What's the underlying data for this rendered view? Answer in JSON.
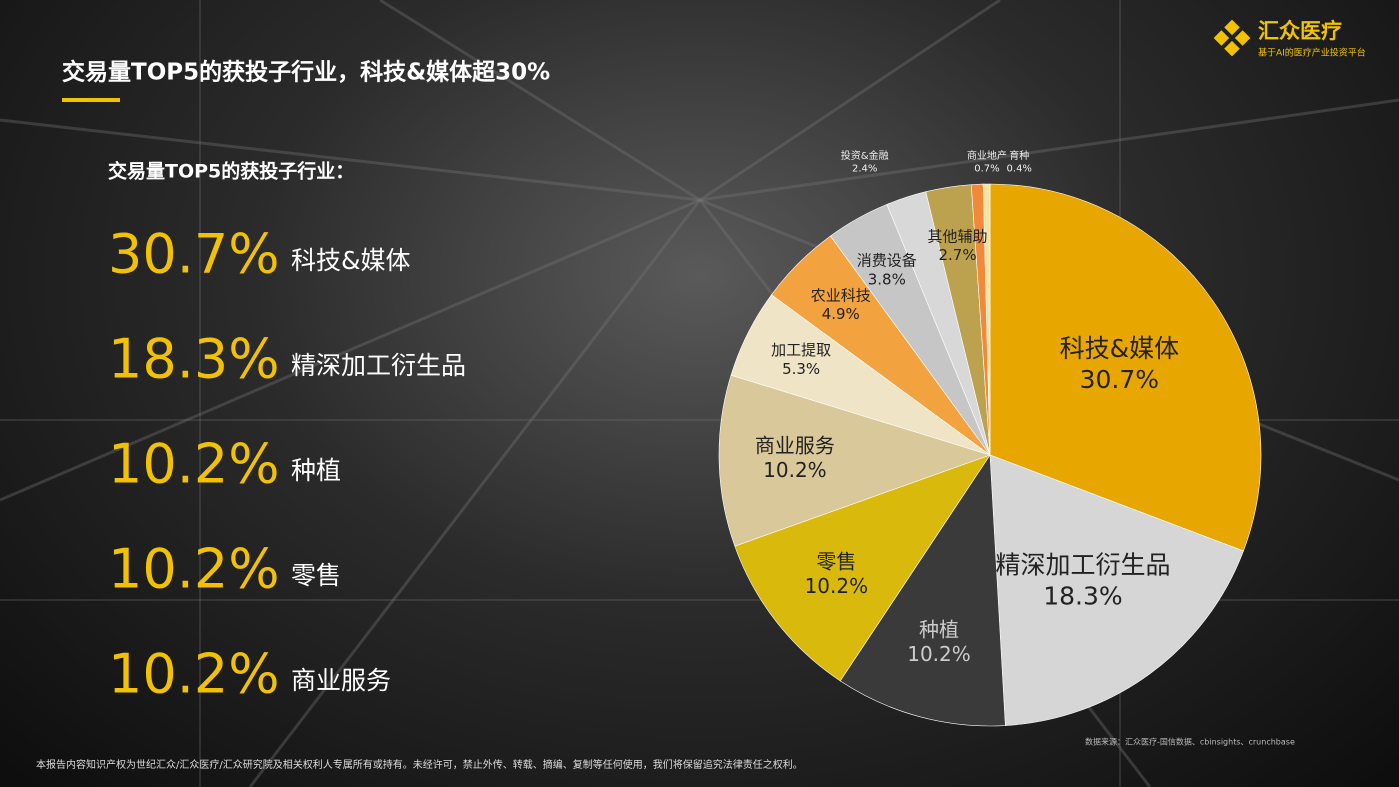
{
  "title": "交易量TOP5的获投子行业，科技&媒体超30%",
  "subtitle": "交易量TOP5的获投子行业：",
  "logo": {
    "name": "汇众医疗",
    "tagline": "基于AI的医疗产业投资平台"
  },
  "source": "数据来源：汇众医疗-国信数据、cbinsights、crunchbase",
  "footer": "本报告内容知识产权为世纪汇众/汇众医疗/汇众研究院及相关权利人专属所有或持有。未经许可，禁止外传、转载、摘编、复制等任何使用，我们将保留追究法律责任之权利。",
  "chart_data": {
    "type": "pie",
    "categories": [
      "科技&媒体",
      "精深加工衍生品",
      "种植",
      "零售",
      "商业服务",
      "加工提取",
      "农业科技",
      "消费设备",
      "投资&金融",
      "其他辅助",
      "商业地产",
      "育种"
    ],
    "values": [
      30.7,
      18.3,
      10.2,
      10.2,
      10.2,
      5.3,
      4.9,
      3.8,
      2.4,
      2.7,
      0.7,
      0.4
    ],
    "value_labels": [
      "30.7%",
      "18.3%",
      "10.2%",
      "10.2%",
      "10.2%",
      "5.3%",
      "4.9%",
      "3.8%",
      "2.4%",
      "2.7%",
      "0.7%",
      "0.4%"
    ],
    "colors": [
      "#e8a600",
      "#d6d6d6",
      "#3a3a3a",
      "#d8b90c",
      "#d9c899",
      "#efe5c6",
      "#f2a23e",
      "#c6c6c6",
      "#d8d8d8",
      "#bca24e",
      "#f08a3a",
      "#f1e3a8"
    ]
  }
}
